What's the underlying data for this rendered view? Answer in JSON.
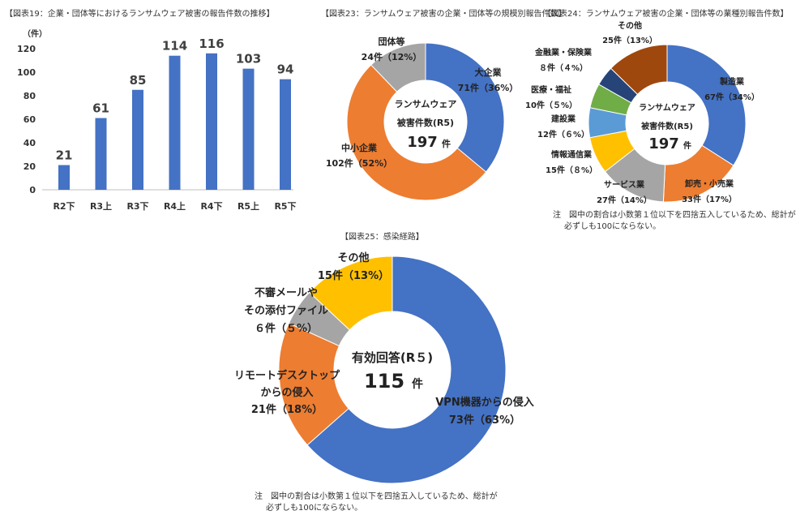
{
  "chart_data": [
    {
      "type": "bar",
      "title": "【図表19：企業・団体等におけるランサムウェア被害の報告件数の推移】",
      "unit": "（件）",
      "categories": [
        "R2下",
        "R3上",
        "R3下",
        "R4上",
        "R4下",
        "R5上",
        "R5下"
      ],
      "values": [
        21,
        61,
        85,
        114,
        116,
        103,
        94
      ],
      "ylim": [
        0,
        120
      ],
      "yticks": [
        0,
        20,
        40,
        60,
        80,
        100,
        120
      ],
      "grid": false,
      "color": "#4472c4"
    },
    {
      "type": "pie",
      "title": "【図表23：ランサムウェア被害の企業・団体等の規模別報告件数】",
      "center_lines": [
        "ランサムウェア",
        "被害件数(R5)"
      ],
      "total": "197",
      "total_unit": "件",
      "slices": [
        {
          "name": "大企業",
          "value": 71,
          "label": "71件（36%）",
          "color": "#4472c4"
        },
        {
          "name": "中小企業",
          "value": 102,
          "label": "102件（52%）",
          "color": "#ed7d31"
        },
        {
          "name": "団体等",
          "value": 24,
          "label": "24件（12%）",
          "color": "#a5a5a5"
        }
      ]
    },
    {
      "type": "pie",
      "title": "【図表24：ランサムウェア被害の企業・団体等の業種別報告件数】",
      "center_lines": [
        "ランサムウェア",
        "被害件数(R5)"
      ],
      "total": "197",
      "total_unit": "件",
      "slices": [
        {
          "name": "製造業",
          "value": 67,
          "label": "67件（34%）",
          "color": "#4472c4"
        },
        {
          "name": "卸売・小売業",
          "value": 33,
          "label": "33件（17%）",
          "color": "#ed7d31"
        },
        {
          "name": "サービス業",
          "value": 27,
          "label": "27件（14%）",
          "color": "#a5a5a5"
        },
        {
          "name": "情報通信業",
          "value": 15,
          "label": "15件（８%）",
          "color": "#ffc000"
        },
        {
          "name": "建設業",
          "value": 12,
          "label": "12件（６%）",
          "color": "#5b9bd5"
        },
        {
          "name": "医療・福祉",
          "value": 10,
          "label": "10件（５%）",
          "color": "#70ad47"
        },
        {
          "name": "金融業・保険業",
          "value": 8,
          "label": "８件（４%）",
          "color": "#264478"
        },
        {
          "name": "その他",
          "value": 25,
          "label": "25件（13%）",
          "color": "#9e480e"
        }
      ],
      "note": [
        "注　図中の割合は小数第１位以下を四捨五入しているため、総計が",
        "必ずしも100にならない。"
      ]
    },
    {
      "type": "pie",
      "title": "【図表25：感染経路】",
      "center_lines": [
        "有効回答(R５)"
      ],
      "total": "115",
      "total_unit": "件",
      "slices": [
        {
          "name": "VPN機器からの侵入",
          "value": 73,
          "label": "73件（63%）",
          "color": "#4472c4"
        },
        {
          "name": "リモートデスクトップからの侵入",
          "value": 21,
          "label": "21件（18%）",
          "color": "#ed7d31"
        },
        {
          "name": "不審メールやその添付ファイル",
          "value": 6,
          "label": "６件（５%）",
          "color": "#a5a5a5"
        },
        {
          "name": "その他",
          "value": 15,
          "label": "15件（13%）",
          "color": "#ffc000"
        }
      ],
      "note": [
        "注　図中の割合は小数第１位以下を四捨五入しているため、総計が",
        "必ずしも100にならない。"
      ]
    }
  ]
}
